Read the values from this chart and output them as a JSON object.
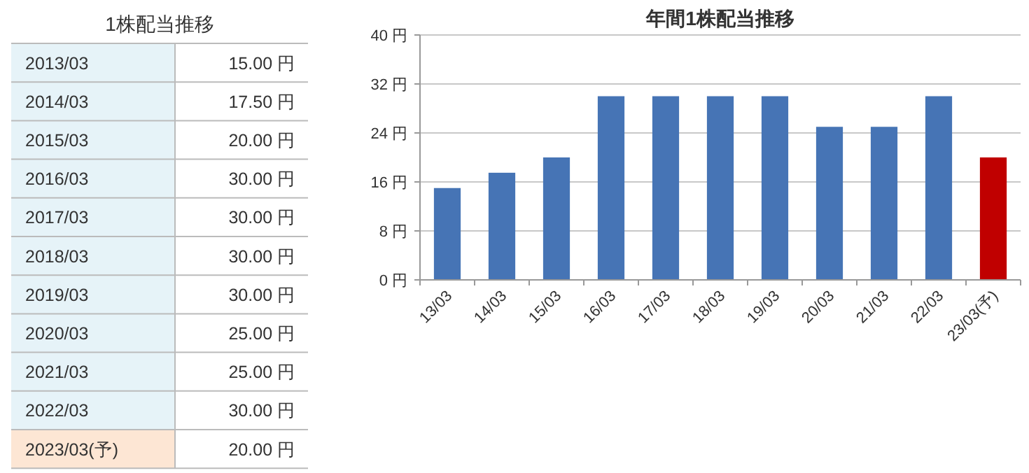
{
  "chart_data": [
    {
      "type": "other",
      "title": "1株配当推移",
      "categories": [
        "2013/03",
        "2014/03",
        "2015/03",
        "2016/03",
        "2017/03",
        "2018/03",
        "2019/03",
        "2020/03",
        "2021/03",
        "2022/03",
        "2023/03(予)"
      ],
      "value_labels": [
        "15.00 円",
        "17.50 円",
        "20.00 円",
        "30.00 円",
        "30.00 円",
        "30.00 円",
        "30.00 円",
        "25.00 円",
        "25.00 円",
        "30.00 円",
        "20.00 円"
      ],
      "colors": [
        "#e6f3f8",
        "#e6f3f8",
        "#e6f3f8",
        "#e6f3f8",
        "#e6f3f8",
        "#e6f3f8",
        "#e6f3f8",
        "#e6f3f8",
        "#e6f3f8",
        "#e6f3f8",
        "#fde6d4"
      ]
    },
    {
      "type": "bar",
      "title": "年間1株配当推移",
      "categories": [
        "13/03",
        "14/03",
        "15/03",
        "16/03",
        "17/03",
        "18/03",
        "19/03",
        "20/03",
        "21/03",
        "22/03",
        "23/03(予)"
      ],
      "values": [
        15,
        17.5,
        20,
        30,
        30,
        30,
        30,
        25,
        25,
        30,
        20
      ],
      "colors": [
        "#4674b5",
        "#4674b5",
        "#4674b5",
        "#4674b5",
        "#4674b5",
        "#4674b5",
        "#4674b5",
        "#4674b5",
        "#4674b5",
        "#4674b5",
        "#c00000"
      ],
      "ylim": [
        0,
        40
      ],
      "yticks": [
        {
          "value": 0,
          "label": "0 円"
        },
        {
          "value": 8,
          "label": "8 円"
        },
        {
          "value": 16,
          "label": "16 円"
        },
        {
          "value": 24,
          "label": "24 円"
        },
        {
          "value": 32,
          "label": "32 円"
        },
        {
          "value": 40,
          "label": "40 円"
        }
      ],
      "grid": "y"
    }
  ]
}
